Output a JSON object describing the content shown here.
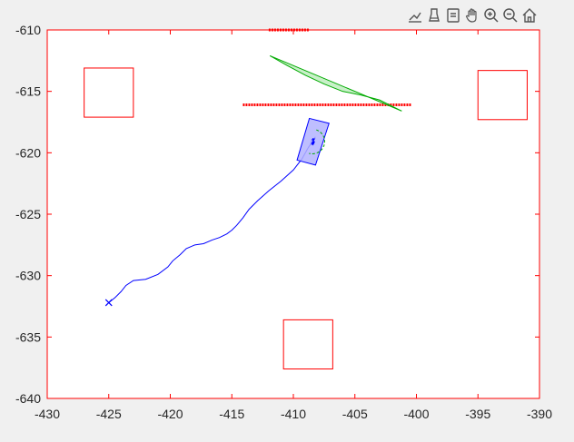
{
  "toolbar": {
    "items": [
      {
        "icon": "export-icon"
      },
      {
        "icon": "brush-icon"
      },
      {
        "icon": "datatip-icon"
      },
      {
        "icon": "pan-icon"
      },
      {
        "icon": "zoom-in-icon"
      },
      {
        "icon": "zoom-out-icon"
      },
      {
        "icon": "home-icon"
      }
    ]
  },
  "chart_data": {
    "type": "line",
    "title": "",
    "xlabel": "",
    "ylabel": "",
    "xlim": [
      -430,
      -390
    ],
    "ylim": [
      -640,
      -610
    ],
    "xticks": [
      -430,
      -425,
      -420,
      -415,
      -410,
      -405,
      -400,
      -395,
      -390
    ],
    "yticks": [
      -610,
      -615,
      -620,
      -625,
      -630,
      -635,
      -640
    ],
    "axis_color": "#ff0000",
    "grid": false,
    "obstacles": [
      {
        "name": "obstacle-top-left",
        "x": [
          -427,
          -423
        ],
        "y": [
          -617.1,
          -613.1
        ],
        "color": "#ff0000"
      },
      {
        "name": "obstacle-top-right",
        "x": [
          -395,
          -391
        ],
        "y": [
          -617.3,
          -613.3
        ],
        "color": "#ff0000"
      },
      {
        "name": "obstacle-bottom",
        "x": [
          -410.8,
          -406.8
        ],
        "y": [
          -637.6,
          -633.6
        ],
        "color": "#ff0000"
      }
    ],
    "barriers": [
      {
        "name": "barrier-top",
        "x": [
          -412,
          -408.7
        ],
        "y": -610,
        "color": "#ff0000"
      },
      {
        "name": "barrier-middle",
        "x": [
          -414.1,
          -400.4
        ],
        "y": -616.1,
        "color": "#ff0000"
      }
    ],
    "trajectory": {
      "color": "#0000ff",
      "start_marker": "x",
      "x": [
        -425,
        -424.5,
        -424,
        -423.6,
        -423,
        -422,
        -421,
        -420.2,
        -419.8,
        -419.2,
        -418.7,
        -418,
        -417.3,
        -416.6,
        -416,
        -415.4,
        -415,
        -414.6,
        -414.1,
        -413.6,
        -412.9,
        -412,
        -411,
        -410,
        -409.3,
        -408.8,
        -408.6,
        -408.5,
        -408.3,
        -408.2
      ],
      "y": [
        -632.2,
        -631.8,
        -631.3,
        -630.8,
        -630.4,
        -630.3,
        -629.9,
        -629.3,
        -628.8,
        -628.3,
        -627.8,
        -627.5,
        -627.4,
        -627.1,
        -626.9,
        -626.6,
        -626.3,
        -625.9,
        -625.3,
        -624.6,
        -623.9,
        -623.1,
        -622.3,
        -621.4,
        -620.5,
        -619.6,
        -619.3,
        -618.9,
        -618.8,
        -618.7
      ]
    },
    "vehicle": {
      "color": "#0000ff",
      "fill": "#b3b3ff",
      "center": [
        -408.4,
        -619.1
      ],
      "corners_x": [
        -409.7,
        -408.2,
        -407.1,
        -408.7
      ],
      "corners_y": [
        -620.6,
        -621,
        -617.6,
        -617.2
      ]
    },
    "sensor_arc": {
      "color": "#00aa00",
      "center": [
        -408.4,
        -619.1
      ],
      "radius": 1.0
    },
    "cone": {
      "color": "#00aa00",
      "fill": "#c8f0c8",
      "edge1_x": [
        -411.9,
        -401.2
      ],
      "edge1_y": [
        -612.1,
        -616.6
      ],
      "edge2_x": [
        -411.9,
        -410.5,
        -409,
        -407.5,
        -406,
        -404.5,
        -403,
        -401.2
      ],
      "edge2_y": [
        -612.1,
        -612.9,
        -613.7,
        -614.4,
        -615.0,
        -615.3,
        -615.7,
        -616.6
      ]
    }
  }
}
